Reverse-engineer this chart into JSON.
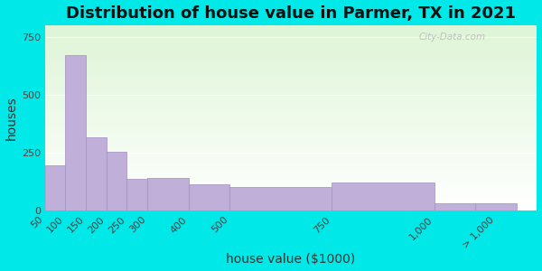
{
  "title": "Distribution of house value in Parmer, TX in 2021",
  "xlabel": "house value ($1000)",
  "ylabel": "houses",
  "bin_edges": [
    50,
    100,
    150,
    200,
    250,
    300,
    400,
    500,
    750,
    1000,
    1100,
    1200
  ],
  "tick_positions": [
    50,
    100,
    150,
    200,
    250,
    300,
    400,
    500,
    750,
    1000,
    1150
  ],
  "tick_labels": [
    "50",
    "100",
    "150",
    "200",
    "250",
    "300",
    "400",
    "500",
    "750",
    "1,000",
    "> 1,000"
  ],
  "values": [
    195,
    670,
    315,
    255,
    135,
    140,
    115,
    100,
    120,
    30,
    30
  ],
  "bar_color": "#c0afd8",
  "bar_edgecolor": "#a090c0",
  "background_outer": "#00e8e8",
  "yticks": [
    0,
    250,
    500,
    750
  ],
  "ylim": [
    0,
    800
  ],
  "xlim": [
    50,
    1250
  ],
  "title_fontsize": 13,
  "axis_fontsize": 10,
  "tick_fontsize": 8,
  "watermark_text": "City-Data.com"
}
